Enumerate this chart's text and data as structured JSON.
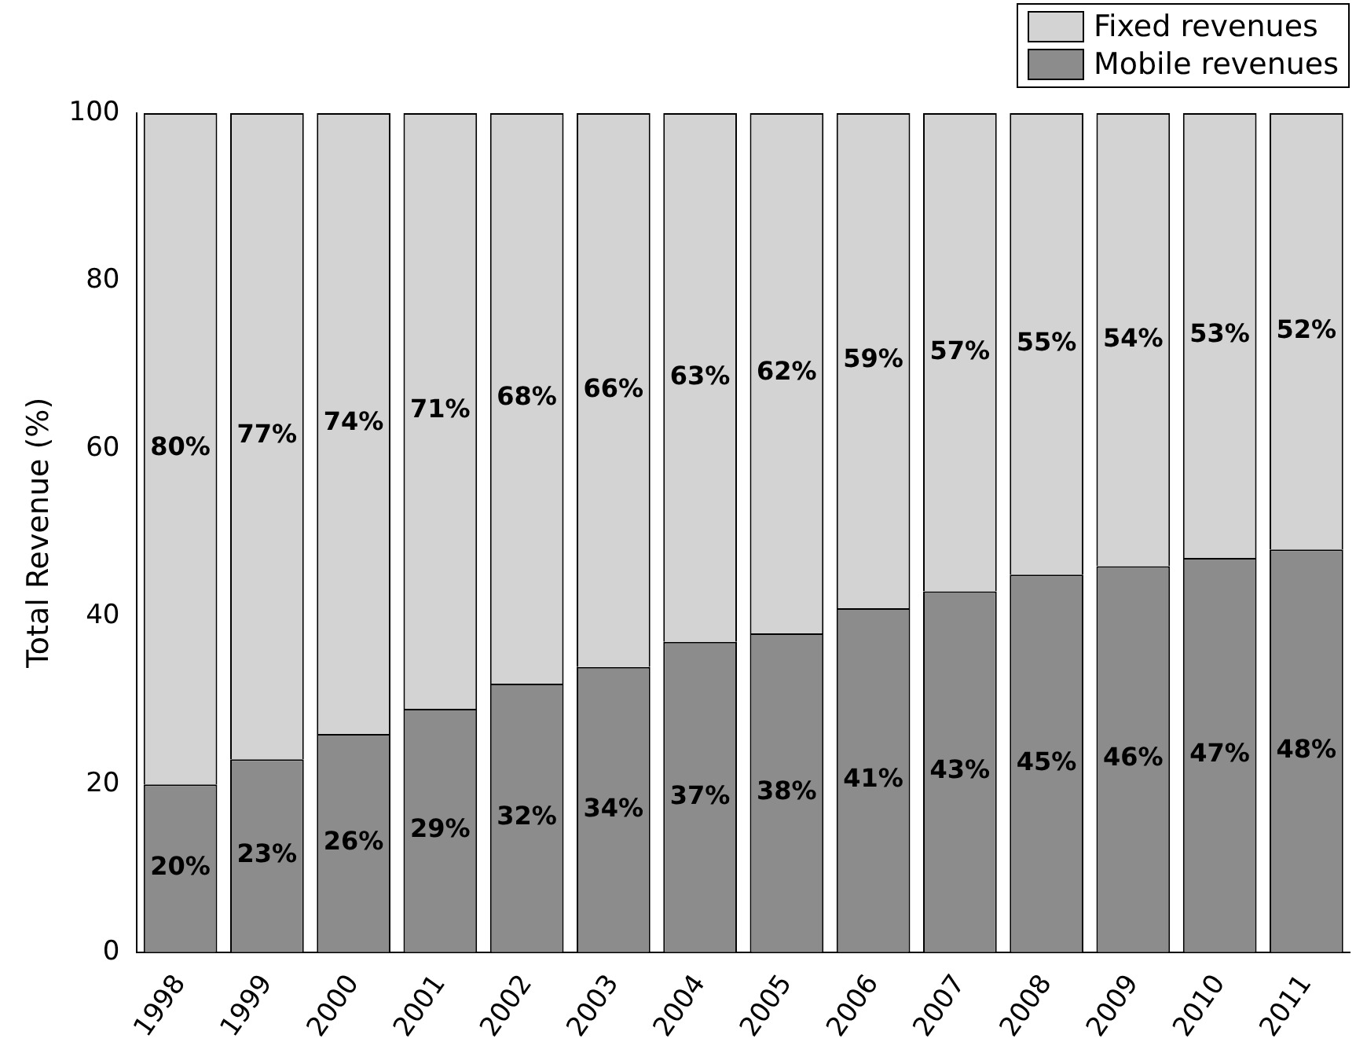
{
  "chart_data": {
    "type": "bar",
    "stacked": true,
    "ylabel": "Total Revenue (%)",
    "categories": [
      "1998",
      "1999",
      "2000",
      "2001",
      "2002",
      "2003",
      "2004",
      "2005",
      "2006",
      "2007",
      "2008",
      "2009",
      "2010",
      "2011"
    ],
    "series": [
      {
        "name": "Mobile revenues",
        "color": "#8c8c8c",
        "values": [
          20,
          23,
          26,
          29,
          32,
          34,
          37,
          38,
          41,
          43,
          45,
          46,
          47,
          48
        ],
        "value_labels": [
          "20%",
          "23%",
          "26%",
          "29%",
          "32%",
          "34%",
          "37%",
          "38%",
          "41%",
          "43%",
          "45%",
          "46%",
          "47%",
          "48%"
        ]
      },
      {
        "name": "Fixed revenues",
        "color": "#d3d3d3",
        "values": [
          80,
          77,
          74,
          71,
          68,
          66,
          63,
          62,
          59,
          57,
          55,
          54,
          53,
          52
        ],
        "value_labels": [
          "80%",
          "77%",
          "74%",
          "71%",
          "68%",
          "66%",
          "63%",
          "62%",
          "59%",
          "57%",
          "55%",
          "54%",
          "53%",
          "52%"
        ]
      }
    ],
    "ylim": [
      0,
      100
    ],
    "yticks": [
      0,
      20,
      40,
      60,
      80,
      100
    ],
    "grid": false,
    "legend": "top right"
  }
}
